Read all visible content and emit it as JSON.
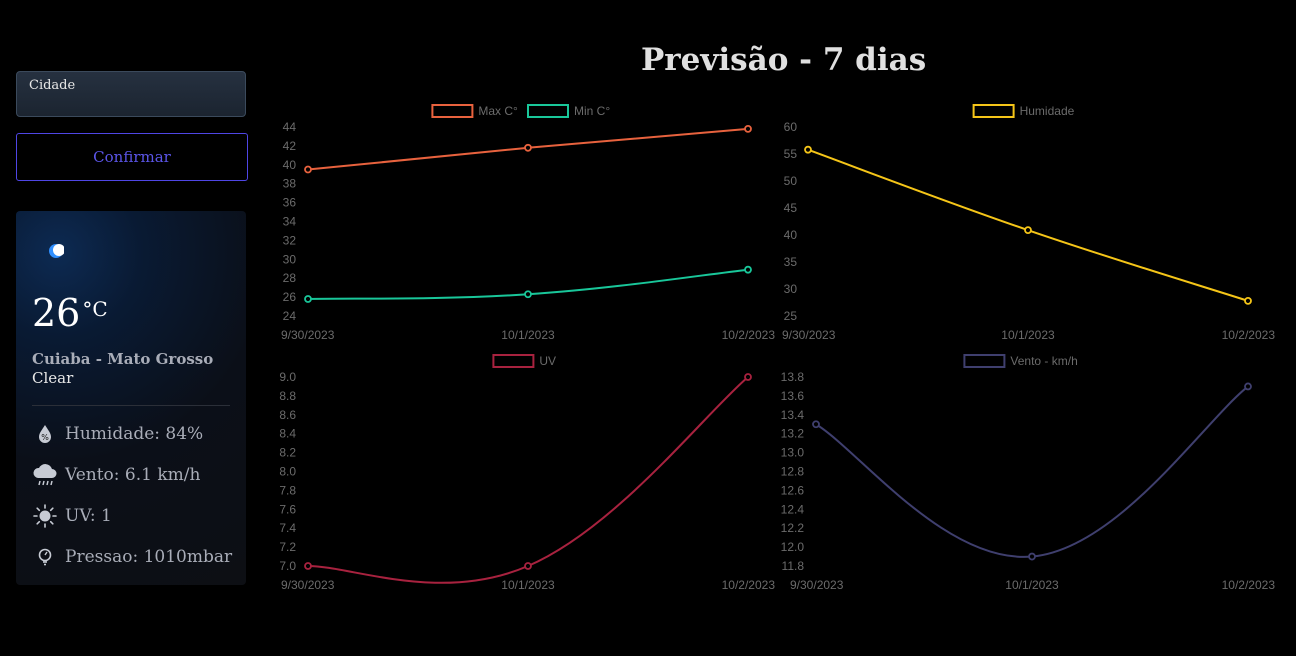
{
  "sidebar": {
    "city_label": "Cidade",
    "city_value": "",
    "confirm_label": "Confirmar"
  },
  "current": {
    "icon": "moon-icon",
    "temperature": "26",
    "unit": "°C",
    "location": "Cuiaba - Mato Grosso",
    "condition": "Clear",
    "humidity": "Humidade: 84%",
    "wind": "Vento: 6.1 km/h",
    "uv": "UV: 1",
    "pressure": "Pressao: 1010mbar"
  },
  "page_title": "Previsão - 7 dias",
  "colors": {
    "max": "#e8623e",
    "min": "#19c79a",
    "humidity": "#f5c518",
    "uv": "#a8223f",
    "wind": "#3f3f6e",
    "accent": "#4f46e5"
  },
  "chart_data": [
    {
      "type": "line",
      "x": [
        "9/30/2023",
        "10/1/2023",
        "10/2/2023"
      ],
      "series": [
        {
          "name": "Max C°",
          "values": [
            39.5,
            41.8,
            43.8
          ],
          "color": "#e8623e"
        },
        {
          "name": "Min C°",
          "values": [
            25.8,
            26.3,
            28.9
          ],
          "color": "#19c79a"
        }
      ],
      "yticks": [
        24,
        26,
        28,
        30,
        32,
        34,
        36,
        38,
        40,
        42,
        44
      ],
      "ylim": [
        24,
        44
      ],
      "legend": "top"
    },
    {
      "type": "line",
      "x": [
        "9/30/2023",
        "10/1/2023",
        "10/2/2023"
      ],
      "series": [
        {
          "name": "Humidade",
          "values": [
            55.8,
            40.9,
            27.8
          ],
          "color": "#f5c518"
        }
      ],
      "yticks": [
        25,
        30,
        35,
        40,
        45,
        50,
        55,
        60
      ],
      "ylim": [
        25,
        60
      ],
      "legend": "top"
    },
    {
      "type": "line",
      "x": [
        "9/30/2023",
        "10/1/2023",
        "10/2/2023"
      ],
      "series": [
        {
          "name": "UV",
          "values": [
            7.0,
            7.0,
            9.0
          ],
          "color": "#a8223f"
        }
      ],
      "yticks": [
        7.0,
        7.2,
        7.4,
        7.6,
        7.8,
        8.0,
        8.2,
        8.4,
        8.6,
        8.8,
        9.0
      ],
      "ylim": [
        7.0,
        9.0
      ],
      "legend": "top"
    },
    {
      "type": "line",
      "x": [
        "9/30/2023",
        "10/1/2023",
        "10/2/2023"
      ],
      "series": [
        {
          "name": "Vento - km/h",
          "values": [
            13.3,
            11.9,
            13.7
          ],
          "color": "#3f3f6e"
        }
      ],
      "yticks": [
        11.8,
        12.0,
        12.2,
        12.4,
        12.6,
        12.8,
        13.0,
        13.2,
        13.4,
        13.6,
        13.8
      ],
      "ylim": [
        11.8,
        13.8
      ],
      "legend": "top"
    }
  ]
}
